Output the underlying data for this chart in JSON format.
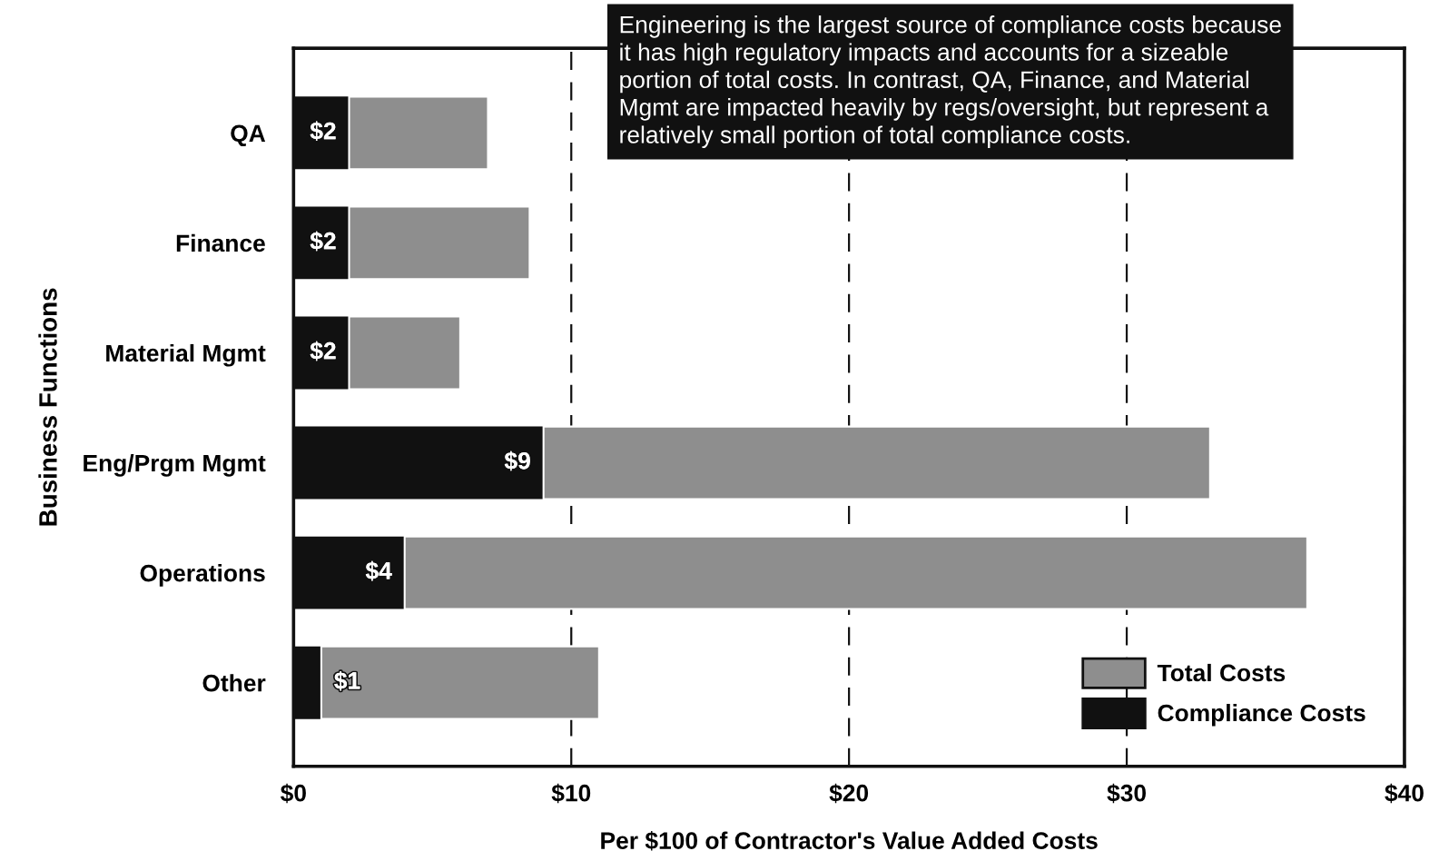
{
  "chart_data": {
    "type": "bar",
    "orientation": "horizontal",
    "stacked": true,
    "categories": [
      "QA",
      "Finance",
      "Material Mgmt",
      "Eng/Prgm Mgmt",
      "Operations",
      "Other"
    ],
    "series": [
      {
        "name": "Compliance Costs",
        "color": "#111111",
        "values": [
          2,
          2,
          2,
          9,
          4,
          1
        ],
        "value_labels": [
          "$2",
          "$2",
          "$2",
          "$9",
          "$4",
          "$1"
        ]
      },
      {
        "name": "Total Costs",
        "color": "#8e8e8e",
        "values": [
          5,
          6.5,
          4,
          24,
          32.5,
          10
        ]
      }
    ],
    "xlim": [
      0,
      40
    ],
    "xticks": [
      {
        "value": 0,
        "label": "$0"
      },
      {
        "value": 10,
        "label": "$10"
      },
      {
        "value": 20,
        "label": "$20"
      },
      {
        "value": 30,
        "label": "$30"
      },
      {
        "value": 40,
        "label": "$40"
      }
    ],
    "xlabel": "Per $100 of Contractor's Value Added Costs",
    "ylabel": "Business Functions",
    "grid": "x",
    "legend": "bottom right",
    "annotations": [
      "Engineering is the largest source of compliance costs because\nit has high regulatory impacts and accounts for a sizeable\nportion of total costs. In contrast, QA, Finance, and Material\nMgmt are impacted heavily by regs/oversight, but represent a\nrelatively small portion of total compliance costs."
    ]
  }
}
